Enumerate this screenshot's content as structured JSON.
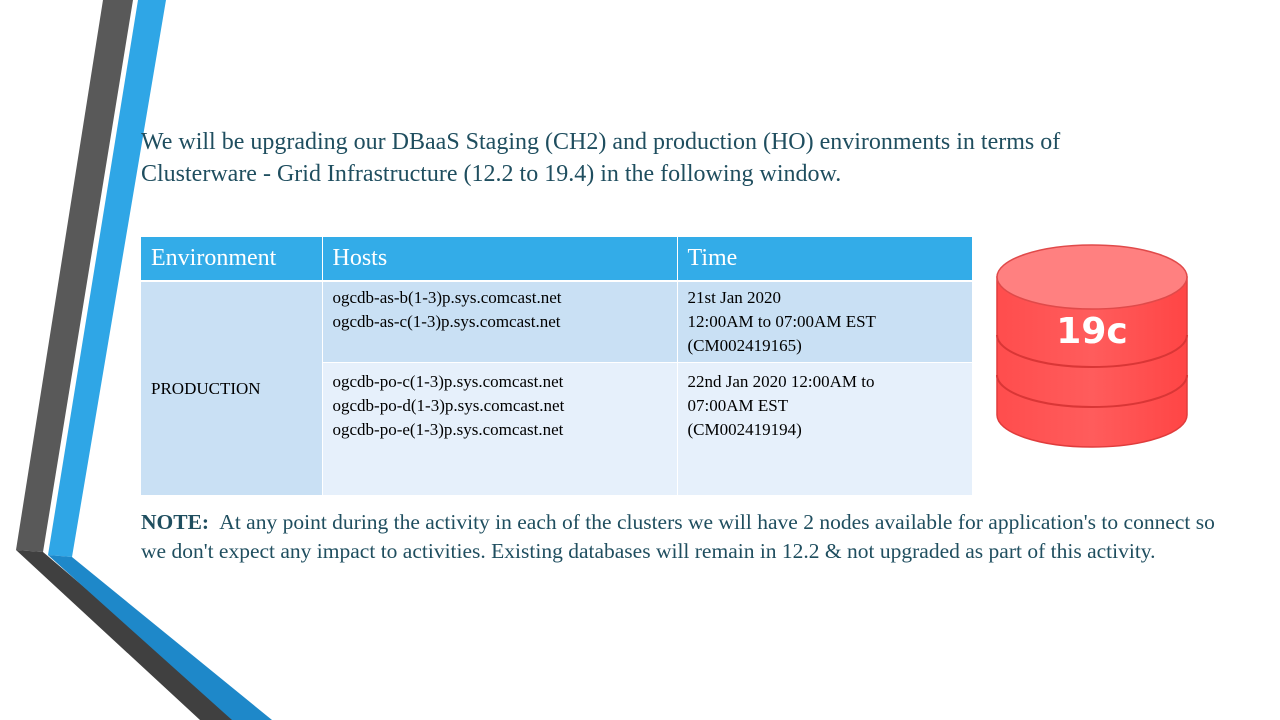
{
  "intro": {
    "line1": "We will be upgrading our DBaaS Staging (CH2) and production (HO) environments in terms of",
    "line2": "Clusterware - Grid Infrastructure (12.2 to 19.4) in the following window."
  },
  "table": {
    "headers": [
      "Environment",
      "Hosts",
      "Time"
    ],
    "environment": "PRODUCTION",
    "rows": [
      {
        "hosts": [
          "ogcdb-as-b(1-3)p.sys.comcast.net",
          "ogcdb-as-c(1-3)p.sys.comcast.net"
        ],
        "time": [
          "21st Jan 2020",
          "12:00AM to 07:00AM EST",
          "(CM002419165)"
        ]
      },
      {
        "hosts": [
          "ogcdb-po-c(1-3)p.sys.comcast.net",
          "ogcdb-po-d(1-3)p.sys.comcast.net",
          "ogcdb-po-e(1-3)p.sys.comcast.net"
        ],
        "time": [
          "22nd Jan 2020 12:00AM to",
          "07:00AM EST",
          "(CM002419194)"
        ]
      }
    ]
  },
  "note": {
    "label": "NOTE:",
    "text": "At any point during the activity in each of the clusters we will have 2 nodes available for application's to connect so we don't expect any impact to activities. Existing databases will remain in 12.2 & not upgraded as part of this activity."
  },
  "db_icon": {
    "label": "19c",
    "color": "#ff5050"
  },
  "colors": {
    "accent": "#33ace8",
    "text": "#1f4e5f",
    "row_dark": "#c9e0f4",
    "row_light": "#e6f0fb"
  }
}
